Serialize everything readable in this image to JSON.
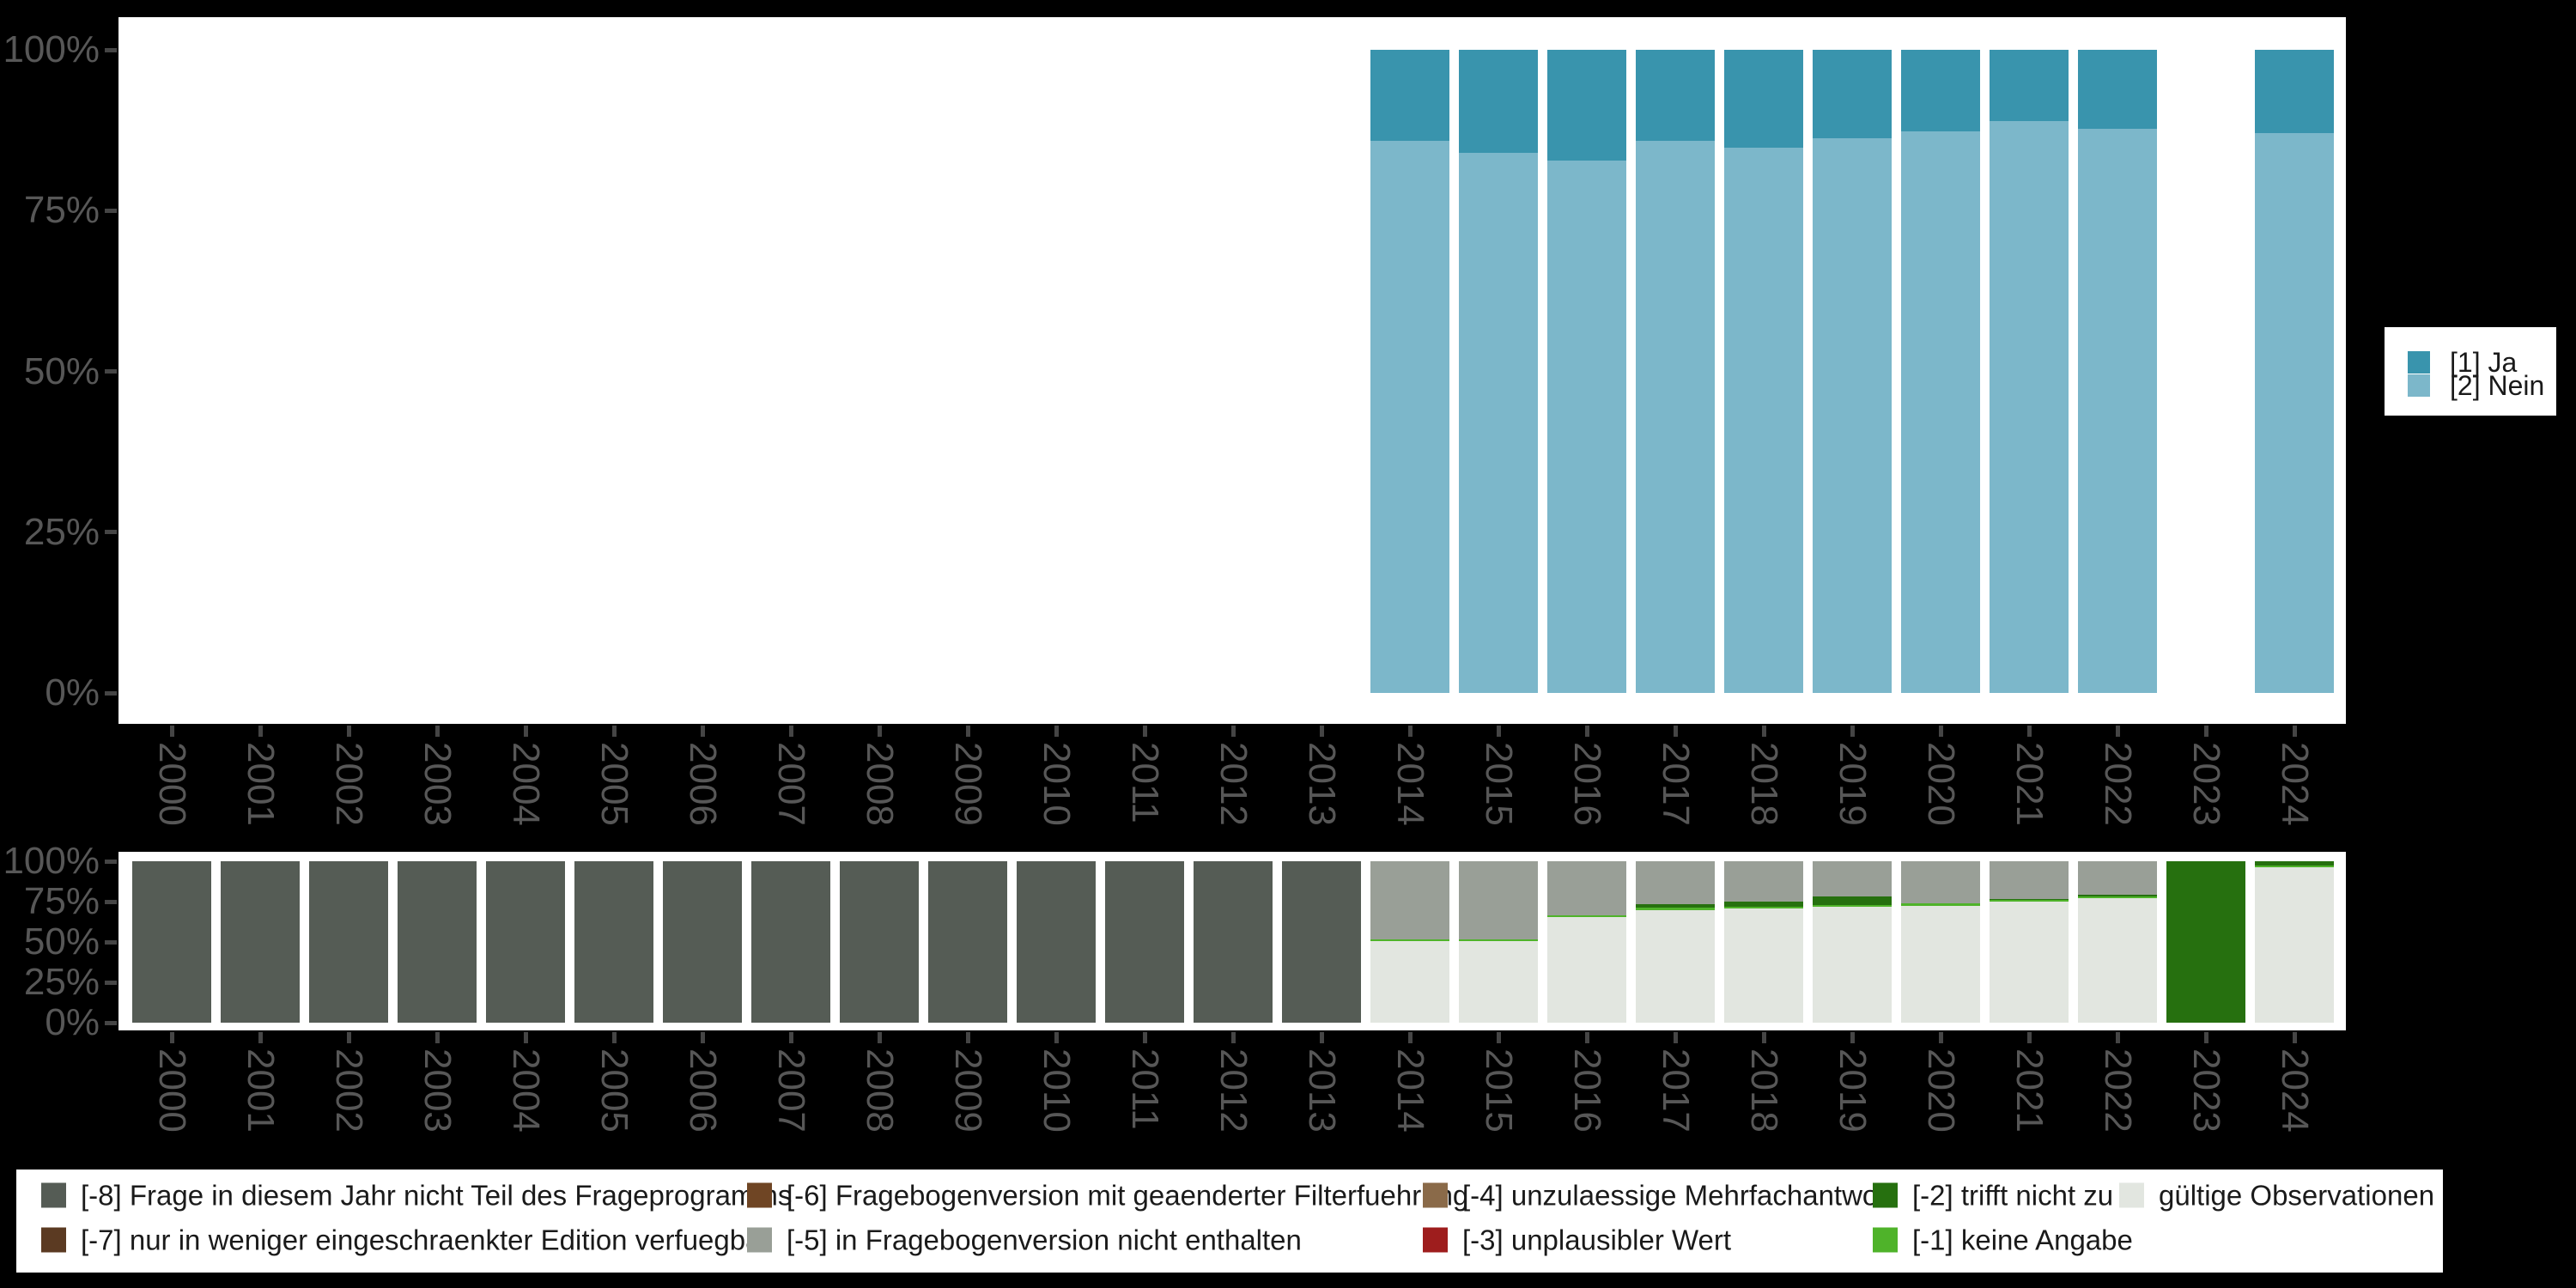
{
  "page": {
    "background": "#000000",
    "panel_background": "#ffffff",
    "axis_text_color": "#575757",
    "tick_color": "#454545"
  },
  "value_legend": {
    "position": "right",
    "items": [
      {
        "label": "[1] Ja",
        "color": "#3994AD"
      },
      {
        "label": "[2] Nein",
        "color": "#7CB7CA"
      }
    ]
  },
  "missing_legend": {
    "position": "bottom",
    "columns": [
      {
        "items": [
          {
            "label": "[-8] Frage in diesem Jahr nicht Teil des Frageprogramms",
            "color": "#555C55"
          },
          {
            "label": "[-7] nur in weniger eingeschraenkter Edition verfuegbar",
            "color": "#5B3A22"
          }
        ]
      },
      {
        "items": [
          {
            "label": "[-6] Fragebogenversion mit geaenderter Filterfuehrung",
            "color": "#6F4524"
          },
          {
            "label": "[-5] in Fragebogenversion nicht enthalten",
            "color": "#999F97"
          }
        ]
      },
      {
        "items": [
          {
            "label": "[-4] unzulaessige Mehrfachantwort",
            "color": "#8A6A49"
          },
          {
            "label": "[-3] unplausibler Wert",
            "color": "#9E1D1D"
          }
        ]
      },
      {
        "items": [
          {
            "label": "[-2] trifft nicht zu",
            "color": "#26700F"
          },
          {
            "label": "[-1] keine Angabe",
            "color": "#4FB32A"
          }
        ]
      },
      {
        "items": [
          {
            "label": "gültige Observationen",
            "color": "#E2E6E0"
          }
        ]
      }
    ]
  },
  "chart_data": [
    {
      "type": "bar",
      "stacked": true,
      "unit": "percent",
      "title": "",
      "xlabel": "",
      "ylabel": "",
      "ylim": [
        0,
        100
      ],
      "grid": false,
      "legend_position": "right",
      "legend_order": [
        "[1] Ja",
        "[2] Nein"
      ],
      "categories": [
        "2000",
        "2001",
        "2002",
        "2003",
        "2004",
        "2005",
        "2006",
        "2007",
        "2008",
        "2009",
        "2010",
        "2011",
        "2012",
        "2013",
        "2014",
        "2015",
        "2016",
        "2017",
        "2018",
        "2019",
        "2020",
        "2021",
        "2022",
        "2023",
        "2024"
      ],
      "y_tick_values": [
        0,
        25,
        50,
        75,
        100
      ],
      "y_tick_labels": [
        "0%",
        "25%",
        "50%",
        "75%",
        "100%"
      ],
      "series": [
        {
          "name": "[2] Nein",
          "color": "#7CB7CA",
          "values": [
            null,
            null,
            null,
            null,
            null,
            null,
            null,
            null,
            null,
            null,
            null,
            null,
            null,
            null,
            85.9,
            84.0,
            82.8,
            85.9,
            84.8,
            86.3,
            87.3,
            88.9,
            87.7,
            null,
            87.0
          ]
        },
        {
          "name": "[1] Ja",
          "color": "#3994AD",
          "values": [
            null,
            null,
            null,
            null,
            null,
            null,
            null,
            null,
            null,
            null,
            null,
            null,
            null,
            null,
            14.1,
            16.0,
            17.2,
            14.1,
            15.2,
            13.7,
            12.7,
            11.1,
            12.3,
            null,
            13.0
          ]
        }
      ]
    },
    {
      "type": "bar",
      "stacked": true,
      "unit": "percent",
      "title": "",
      "xlabel": "",
      "ylabel": "",
      "ylim": [
        0,
        100
      ],
      "grid": false,
      "legend_position": "bottom",
      "categories": [
        "2000",
        "2001",
        "2002",
        "2003",
        "2004",
        "2005",
        "2006",
        "2007",
        "2008",
        "2009",
        "2010",
        "2011",
        "2012",
        "2013",
        "2014",
        "2015",
        "2016",
        "2017",
        "2018",
        "2019",
        "2020",
        "2021",
        "2022",
        "2023",
        "2024"
      ],
      "y_tick_values": [
        0,
        25,
        50,
        75,
        100
      ],
      "y_tick_labels": [
        "0%",
        "25%",
        "50%",
        "75%",
        "100%"
      ],
      "series": [
        {
          "name": "gültige Observationen",
          "color": "#E2E6E0",
          "values": [
            0,
            0,
            0,
            0,
            0,
            0,
            0,
            0,
            0,
            0,
            0,
            0,
            0,
            0,
            50.5,
            50.5,
            65.6,
            69.9,
            70.8,
            71.9,
            72.5,
            75.0,
            77.0,
            0,
            96.2
          ]
        },
        {
          "name": "[-1] keine Angabe",
          "color": "#4FB32A",
          "values": [
            0,
            0,
            0,
            0,
            0,
            0,
            0,
            0,
            0,
            0,
            0,
            0,
            0,
            0,
            1.1,
            1.1,
            1.1,
            1.2,
            1.2,
            1.1,
            1.5,
            1.0,
            1.1,
            0,
            1.3
          ]
        },
        {
          "name": "[-2] trifft nicht zu",
          "color": "#26700F",
          "values": [
            0,
            0,
            0,
            0,
            0,
            0,
            0,
            0,
            0,
            0,
            0,
            0,
            0,
            0,
            0,
            0,
            0,
            2.4,
            3.1,
            5.0,
            0,
            0.5,
            1.1,
            100,
            2.5
          ]
        },
        {
          "name": "[-5] in Fragebogenversion nicht enthalten",
          "color": "#999F97",
          "values": [
            0,
            0,
            0,
            0,
            0,
            0,
            0,
            0,
            0,
            0,
            0,
            0,
            0,
            0,
            48.4,
            48.4,
            33.3,
            26.5,
            24.9,
            22.0,
            26.0,
            23.5,
            20.8,
            0,
            0
          ]
        },
        {
          "name": "[-8] Frage in diesem Jahr nicht Teil des Frageprogramms",
          "color": "#555C55",
          "values": [
            100,
            100,
            100,
            100,
            100,
            100,
            100,
            100,
            100,
            100,
            100,
            100,
            100,
            100,
            0,
            0,
            0,
            0,
            0,
            0,
            0,
            0,
            0,
            0,
            0
          ]
        }
      ]
    }
  ]
}
